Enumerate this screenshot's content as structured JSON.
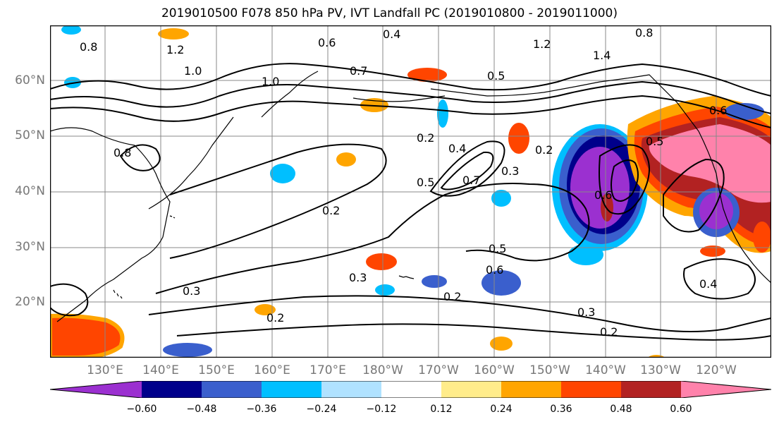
{
  "title": "2019010500 F078 850 hPa PV, IVT Landfall PC (2019010800 - 2019011000)",
  "map": {
    "lat_labels": [
      "60°N",
      "50°N",
      "40°N",
      "30°N",
      "20°N"
    ],
    "lon_labels": [
      "130°E",
      "140°E",
      "150°E",
      "160°E",
      "170°E",
      "180°W",
      "170°W",
      "160°W",
      "150°W",
      "140°W",
      "130°W",
      "120°W"
    ],
    "contour_labels": [
      "0.8",
      "1.2",
      "1.0",
      "1.4",
      "1.2",
      "0.8",
      "0.4",
      "0.6",
      "0.5",
      "0.7",
      "1.0",
      "0.2",
      "0.4",
      "0.2",
      "0.5",
      "0.7",
      "0.3",
      "0.2",
      "0.3",
      "0.2",
      "0.3",
      "0.2",
      "0.5",
      "0.6",
      "0.3",
      "0.2",
      "0.4",
      "0.5",
      "0.6",
      "0.8",
      "0.6"
    ]
  },
  "colorbar": {
    "ticks": [
      "−0.60",
      "−0.48",
      "−0.36",
      "−0.24",
      "−0.12",
      "0.12",
      "0.24",
      "0.36",
      "0.48",
      "0.60"
    ],
    "colors": [
      "#9b30d0",
      "#00008b",
      "#3a5fcd",
      "#00bfff",
      "#b0e2ff",
      "#ffffff",
      "#ffec8b",
      "#ffa500",
      "#ff4500",
      "#b22222",
      "#ff82ab"
    ]
  }
}
